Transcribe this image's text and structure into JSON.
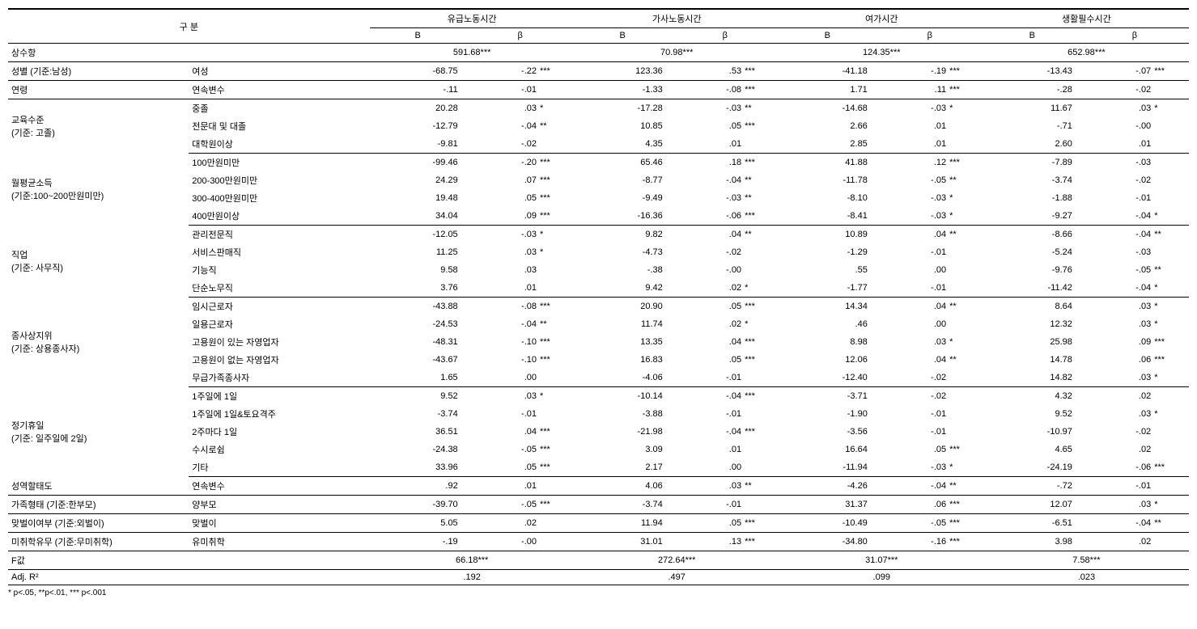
{
  "header": {
    "group_label": "구    분",
    "cols": [
      "유급노동시간",
      "가사노동시간",
      "여가시간",
      "생활필수시간"
    ],
    "sub_B": "B",
    "sub_beta": "β"
  },
  "categories": [
    {
      "label": "상수항",
      "rows": [
        {
          "sub": "",
          "centered": true,
          "vals": [
            {
              "B": "591.68***",
              "beta": "",
              "sig": ""
            },
            {
              "B": "70.98***",
              "beta": "",
              "sig": ""
            },
            {
              "B": "124.35***",
              "beta": "",
              "sig": ""
            },
            {
              "B": "652.98***",
              "beta": "",
              "sig": ""
            }
          ]
        }
      ]
    },
    {
      "label": "성별 (기준:남성)",
      "rows": [
        {
          "sub": "여성",
          "vals": [
            {
              "B": "-68.75",
              "beta": "-.22",
              "sig": "***"
            },
            {
              "B": "123.36",
              "beta": ".53",
              "sig": "***"
            },
            {
              "B": "-41.18",
              "beta": "-.19",
              "sig": "***"
            },
            {
              "B": "-13.43",
              "beta": "-.07",
              "sig": "***"
            }
          ]
        }
      ]
    },
    {
      "label": "연령",
      "rows": [
        {
          "sub": "연속변수",
          "vals": [
            {
              "B": "-.11",
              "beta": "-.01",
              "sig": ""
            },
            {
              "B": "-1.33",
              "beta": "-.08",
              "sig": "***"
            },
            {
              "B": "1.71",
              "beta": ".11",
              "sig": "***"
            },
            {
              "B": "-.28",
              "beta": "-.02",
              "sig": ""
            }
          ]
        }
      ]
    },
    {
      "label": "교육수준",
      "label2": "(기준: 고졸)",
      "rows": [
        {
          "sub": "중졸",
          "vals": [
            {
              "B": "20.28",
              "beta": ".03",
              "sig": "*"
            },
            {
              "B": "-17.28",
              "beta": "-.03",
              "sig": "**"
            },
            {
              "B": "-14.68",
              "beta": "-.03",
              "sig": "*"
            },
            {
              "B": "11.67",
              "beta": ".03",
              "sig": "*"
            }
          ]
        },
        {
          "sub": "전문대 및 대졸",
          "vals": [
            {
              "B": "-12.79",
              "beta": "-.04",
              "sig": "**"
            },
            {
              "B": "10.85",
              "beta": ".05",
              "sig": "***"
            },
            {
              "B": "2.66",
              "beta": ".01",
              "sig": ""
            },
            {
              "B": "-.71",
              "beta": "-.00",
              "sig": ""
            }
          ]
        },
        {
          "sub": "대학원이상",
          "vals": [
            {
              "B": "-9.81",
              "beta": "-.02",
              "sig": ""
            },
            {
              "B": "4.35",
              "beta": ".01",
              "sig": ""
            },
            {
              "B": "2.85",
              "beta": ".01",
              "sig": ""
            },
            {
              "B": "2.60",
              "beta": ".01",
              "sig": ""
            }
          ]
        }
      ]
    },
    {
      "label": "월평균소득",
      "label2": "(기준:100~200만원미만)",
      "rows": [
        {
          "sub": "100만원미만",
          "vals": [
            {
              "B": "-99.46",
              "beta": "-.20",
              "sig": "***"
            },
            {
              "B": "65.46",
              "beta": ".18",
              "sig": "***"
            },
            {
              "B": "41.88",
              "beta": ".12",
              "sig": "***"
            },
            {
              "B": "-7.89",
              "beta": "-.03",
              "sig": ""
            }
          ]
        },
        {
          "sub": "200-300만원미만",
          "vals": [
            {
              "B": "24.29",
              "beta": ".07",
              "sig": "***"
            },
            {
              "B": "-8.77",
              "beta": "-.04",
              "sig": "**"
            },
            {
              "B": "-11.78",
              "beta": "-.05",
              "sig": "**"
            },
            {
              "B": "-3.74",
              "beta": "-.02",
              "sig": ""
            }
          ]
        },
        {
          "sub": "300-400만원미만",
          "vals": [
            {
              "B": "19.48",
              "beta": ".05",
              "sig": "***"
            },
            {
              "B": "-9.49",
              "beta": "-.03",
              "sig": "**"
            },
            {
              "B": "-8.10",
              "beta": "-.03",
              "sig": "*"
            },
            {
              "B": "-1.88",
              "beta": "-.01",
              "sig": ""
            }
          ]
        },
        {
          "sub": "400만원이상",
          "vals": [
            {
              "B": "34.04",
              "beta": ".09",
              "sig": "***"
            },
            {
              "B": "-16.36",
              "beta": "-.06",
              "sig": "***"
            },
            {
              "B": "-8.41",
              "beta": "-.03",
              "sig": "*"
            },
            {
              "B": "-9.27",
              "beta": "-.04",
              "sig": "*"
            }
          ]
        }
      ]
    },
    {
      "label": "직업",
      "label2": "(기준: 사무직)",
      "rows": [
        {
          "sub": "관리전문직",
          "vals": [
            {
              "B": "-12.05",
              "beta": "-.03",
              "sig": "*"
            },
            {
              "B": "9.82",
              "beta": ".04",
              "sig": "**"
            },
            {
              "B": "10.89",
              "beta": ".04",
              "sig": "**"
            },
            {
              "B": "-8.66",
              "beta": "-.04",
              "sig": "**"
            }
          ]
        },
        {
          "sub": "서비스판매직",
          "vals": [
            {
              "B": "11.25",
              "beta": ".03",
              "sig": "*"
            },
            {
              "B": "-4.73",
              "beta": "-.02",
              "sig": ""
            },
            {
              "B": "-1.29",
              "beta": "-.01",
              "sig": ""
            },
            {
              "B": "-5.24",
              "beta": "-.03",
              "sig": ""
            }
          ]
        },
        {
          "sub": "기능직",
          "vals": [
            {
              "B": "9.58",
              "beta": ".03",
              "sig": ""
            },
            {
              "B": "-.38",
              "beta": "-.00",
              "sig": ""
            },
            {
              "B": ".55",
              "beta": ".00",
              "sig": ""
            },
            {
              "B": "-9.76",
              "beta": "-.05",
              "sig": "**"
            }
          ]
        },
        {
          "sub": "단순노무직",
          "vals": [
            {
              "B": "3.76",
              "beta": ".01",
              "sig": ""
            },
            {
              "B": "9.42",
              "beta": ".02",
              "sig": "*"
            },
            {
              "B": "-1.77",
              "beta": "-.01",
              "sig": ""
            },
            {
              "B": "-11.42",
              "beta": "-.04",
              "sig": "*"
            }
          ]
        }
      ]
    },
    {
      "label": "종사상지위",
      "label2": "(기준: 상용종사자)",
      "rows": [
        {
          "sub": "임시근로자",
          "vals": [
            {
              "B": "-43.88",
              "beta": "-.08",
              "sig": "***"
            },
            {
              "B": "20.90",
              "beta": ".05",
              "sig": "***"
            },
            {
              "B": "14.34",
              "beta": ".04",
              "sig": "**"
            },
            {
              "B": "8.64",
              "beta": ".03",
              "sig": "*"
            }
          ]
        },
        {
          "sub": "일용근로자",
          "vals": [
            {
              "B": "-24.53",
              "beta": "-.04",
              "sig": "**"
            },
            {
              "B": "11.74",
              "beta": ".02",
              "sig": "*"
            },
            {
              "B": ".46",
              "beta": ".00",
              "sig": ""
            },
            {
              "B": "12.32",
              "beta": ".03",
              "sig": "*"
            }
          ]
        },
        {
          "sub": "고용원이 있는 자영업자",
          "vals": [
            {
              "B": "-48.31",
              "beta": "-.10",
              "sig": "***"
            },
            {
              "B": "13.35",
              "beta": ".04",
              "sig": "***"
            },
            {
              "B": "8.98",
              "beta": ".03",
              "sig": "*"
            },
            {
              "B": "25.98",
              "beta": ".09",
              "sig": "***"
            }
          ]
        },
        {
          "sub": "고용원이 없는 자영업자",
          "vals": [
            {
              "B": "-43.67",
              "beta": "-.10",
              "sig": "***"
            },
            {
              "B": "16.83",
              "beta": ".05",
              "sig": "***"
            },
            {
              "B": "12.06",
              "beta": ".04",
              "sig": "**"
            },
            {
              "B": "14.78",
              "beta": ".06",
              "sig": "***"
            }
          ]
        },
        {
          "sub": "무급가족종사자",
          "vals": [
            {
              "B": "1.65",
              "beta": ".00",
              "sig": ""
            },
            {
              "B": "-4.06",
              "beta": "-.01",
              "sig": ""
            },
            {
              "B": "-12.40",
              "beta": "-.02",
              "sig": ""
            },
            {
              "B": "14.82",
              "beta": ".03",
              "sig": "*"
            }
          ]
        }
      ]
    },
    {
      "label": "정기휴일",
      "label2": "(기준: 일주일에 2일)",
      "rows": [
        {
          "sub": "1주일에 1일",
          "vals": [
            {
              "B": "9.52",
              "beta": ".03",
              "sig": "*"
            },
            {
              "B": "-10.14",
              "beta": "-.04",
              "sig": "***"
            },
            {
              "B": "-3.71",
              "beta": "-.02",
              "sig": ""
            },
            {
              "B": "4.32",
              "beta": ".02",
              "sig": ""
            }
          ]
        },
        {
          "sub": "1주일에 1일&토요격주",
          "vals": [
            {
              "B": "-3.74",
              "beta": "-.01",
              "sig": ""
            },
            {
              "B": "-3.88",
              "beta": "-.01",
              "sig": ""
            },
            {
              "B": "-1.90",
              "beta": "-.01",
              "sig": ""
            },
            {
              "B": "9.52",
              "beta": ".03",
              "sig": "*"
            }
          ]
        },
        {
          "sub": "2주마다 1일",
          "vals": [
            {
              "B": "36.51",
              "beta": ".04",
              "sig": "***"
            },
            {
              "B": "-21.98",
              "beta": "-.04",
              "sig": "***"
            },
            {
              "B": "-3.56",
              "beta": "-.01",
              "sig": ""
            },
            {
              "B": "-10.97",
              "beta": "-.02",
              "sig": ""
            }
          ]
        },
        {
          "sub": "수시로쉼",
          "vals": [
            {
              "B": "-24.38",
              "beta": "-.05",
              "sig": "***"
            },
            {
              "B": "3.09",
              "beta": ".01",
              "sig": ""
            },
            {
              "B": "16.64",
              "beta": ".05",
              "sig": "***"
            },
            {
              "B": "4.65",
              "beta": ".02",
              "sig": ""
            }
          ]
        },
        {
          "sub": "기타",
          "vals": [
            {
              "B": "33.96",
              "beta": ".05",
              "sig": "***"
            },
            {
              "B": "2.17",
              "beta": ".00",
              "sig": ""
            },
            {
              "B": "-11.94",
              "beta": "-.03",
              "sig": "*"
            },
            {
              "B": "-24.19",
              "beta": "-.06",
              "sig": "***"
            }
          ]
        }
      ]
    },
    {
      "label": "성역할태도",
      "rows": [
        {
          "sub": "연속변수",
          "vals": [
            {
              "B": ".92",
              "beta": ".01",
              "sig": ""
            },
            {
              "B": "4.06",
              "beta": ".03",
              "sig": "**"
            },
            {
              "B": "-4.26",
              "beta": "-.04",
              "sig": "**"
            },
            {
              "B": "-.72",
              "beta": "-.01",
              "sig": ""
            }
          ]
        }
      ]
    },
    {
      "label": "가족형태 (기준:한부모)",
      "rows": [
        {
          "sub": "양부모",
          "vals": [
            {
              "B": "-39.70",
              "beta": "-.05",
              "sig": "***"
            },
            {
              "B": "-3.74",
              "beta": "-.01",
              "sig": ""
            },
            {
              "B": "31.37",
              "beta": ".06",
              "sig": "***"
            },
            {
              "B": "12.07",
              "beta": ".03",
              "sig": "*"
            }
          ]
        }
      ]
    },
    {
      "label": "맞벌이여부 (기준:외벌이)",
      "rows": [
        {
          "sub": "맞벌이",
          "vals": [
            {
              "B": "5.05",
              "beta": ".02",
              "sig": ""
            },
            {
              "B": "11.94",
              "beta": ".05",
              "sig": "***"
            },
            {
              "B": "-10.49",
              "beta": "-.05",
              "sig": "***"
            },
            {
              "B": "-6.51",
              "beta": "-.04",
              "sig": "**"
            }
          ]
        }
      ]
    },
    {
      "label": "미취학유무 (기준:무미취학)",
      "rows": [
        {
          "sub": "유미취학",
          "vals": [
            {
              "B": "-.19",
              "beta": "-.00",
              "sig": ""
            },
            {
              "B": "31.01",
              "beta": ".13",
              "sig": "***"
            },
            {
              "B": "-34.80",
              "beta": "-.16",
              "sig": "***"
            },
            {
              "B": "3.98",
              "beta": ".02",
              "sig": ""
            }
          ]
        }
      ]
    }
  ],
  "footer": {
    "f_label": "F값",
    "f_vals": [
      "66.18***",
      "272.64***",
      "31.07***",
      "7.58***"
    ],
    "r_label": "Adj. R²",
    "r_vals": [
      ".192",
      ".497",
      ".099",
      ".023"
    ],
    "note": "* p<.05, **p<.01, *** p<.001"
  }
}
